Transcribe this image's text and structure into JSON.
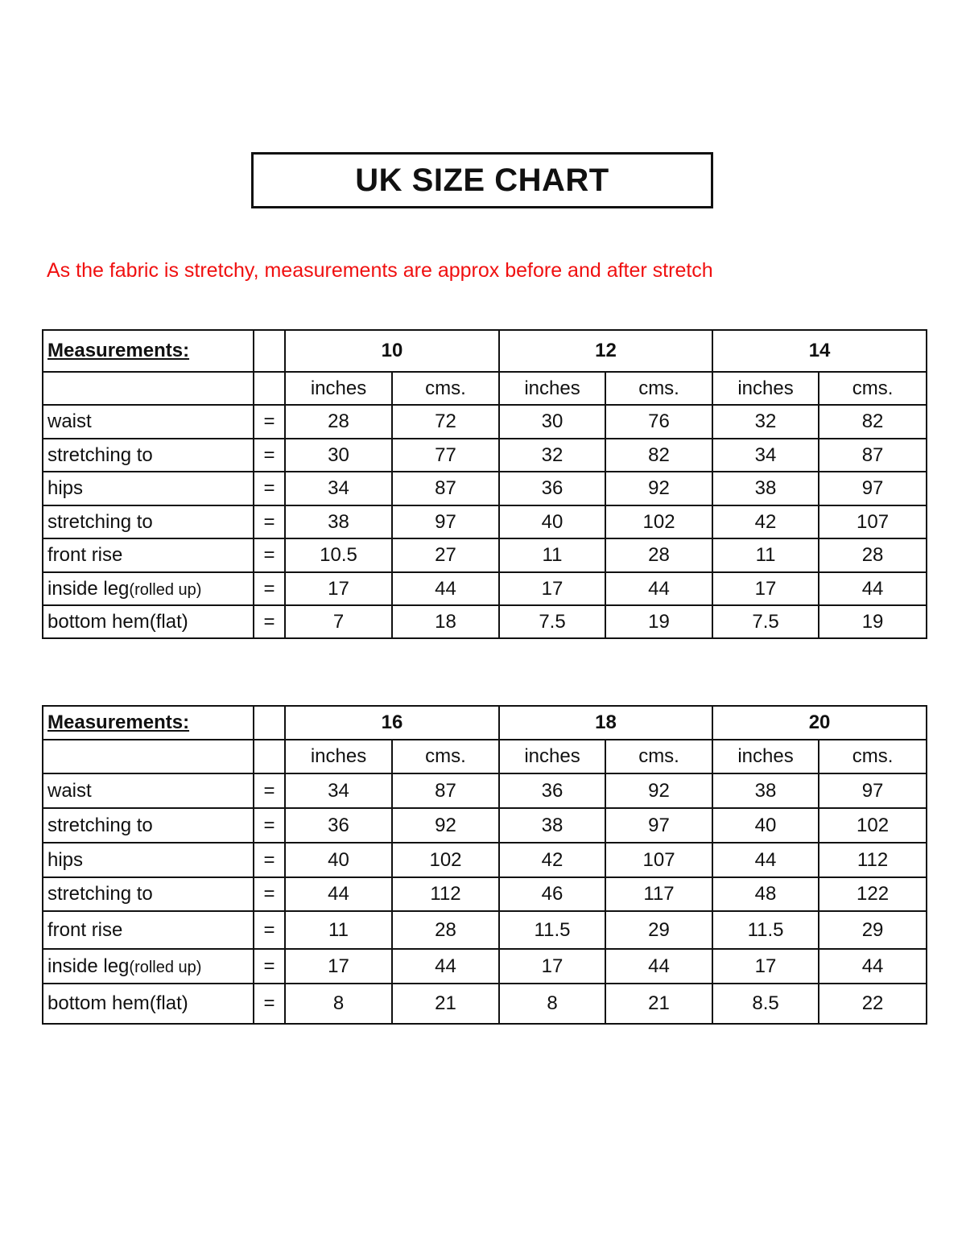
{
  "title": "UK SIZE CHART",
  "note": "As the fabric is stretchy, measurements are approx before and after stretch",
  "header_label": "Measurements:",
  "unit_inches": "inches",
  "unit_cms": "cms.",
  "equals": "=",
  "tables": [
    {
      "sizes": [
        "10",
        "12",
        "14"
      ],
      "rows": [
        {
          "label": "waist",
          "values": [
            "28",
            "72",
            "30",
            "76",
            "32",
            "82"
          ]
        },
        {
          "label": "stretching to",
          "values": [
            "30",
            "77",
            "32",
            "82",
            "34",
            "87"
          ]
        },
        {
          "label": "hips",
          "values": [
            "34",
            "87",
            "36",
            "92",
            "38",
            "97"
          ]
        },
        {
          "label": "stretching to",
          "values": [
            "38",
            "97",
            "40",
            "102",
            "42",
            "107"
          ]
        },
        {
          "label": "front rise",
          "values": [
            "10.5",
            "27",
            "11",
            "28",
            "11",
            "28"
          ]
        },
        {
          "label": "inside leg",
          "label_suffix": "(rolled up)",
          "values": [
            "17",
            "44",
            "17",
            "44",
            "17",
            "44"
          ]
        },
        {
          "label": "bottom hem(flat)",
          "values": [
            "7",
            "18",
            "7.5",
            "19",
            "7.5",
            "19"
          ]
        }
      ]
    },
    {
      "sizes": [
        "16",
        "18",
        "20"
      ],
      "rows": [
        {
          "label": "waist",
          "values": [
            "34",
            "87",
            "36",
            "92",
            "38",
            "97"
          ]
        },
        {
          "label": "stretching to",
          "values": [
            "36",
            "92",
            "38",
            "97",
            "40",
            "102"
          ]
        },
        {
          "label": "hips",
          "values": [
            "40",
            "102",
            "42",
            "107",
            "44",
            "112"
          ]
        },
        {
          "label": "stretching to",
          "values": [
            "44",
            "112",
            "46",
            "117",
            "48",
            "122"
          ]
        },
        {
          "label": "front rise",
          "values": [
            "11",
            "28",
            "11.5",
            "29",
            "11.5",
            "29"
          ]
        },
        {
          "label": "inside leg",
          "label_suffix": "(rolled up)",
          "values": [
            "17",
            "44",
            "17",
            "44",
            "17",
            "44"
          ]
        },
        {
          "label": "bottom hem(flat)",
          "values": [
            "8",
            "21",
            "8",
            "21",
            "8.5",
            "22"
          ]
        }
      ]
    }
  ]
}
